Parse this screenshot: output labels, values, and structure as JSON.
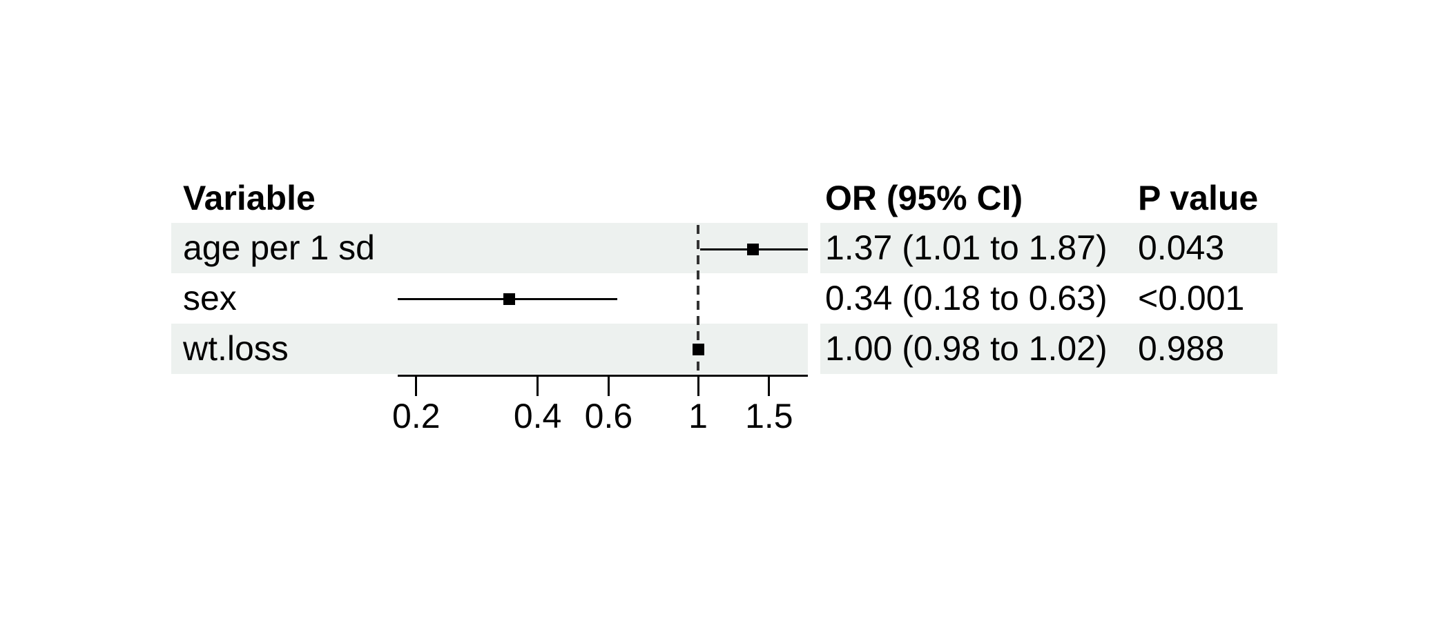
{
  "header": {
    "variable": "Variable",
    "or_ci": "OR (95% CI)",
    "p_value": "P value"
  },
  "rows": [
    {
      "variable": "age per 1 sd",
      "or_ci": "1.37 (1.01 to 1.87)",
      "p_value": "0.043"
    },
    {
      "variable": "sex",
      "or_ci": "0.34 (0.18 to 0.63)",
      "p_value": "<0.001"
    },
    {
      "variable": "wt.loss",
      "or_ci": "1.00 (0.98 to 1.02)",
      "p_value": "0.988"
    }
  ],
  "chart_data": {
    "type": "scatter",
    "subtype": "forest-plot",
    "title": "",
    "xlabel": "",
    "ylabel": "",
    "x_scale": "log",
    "x_ticks": [
      0.2,
      0.4,
      0.6,
      1,
      1.5
    ],
    "x_range": [
      0.18,
      1.87
    ],
    "reference_line": 1,
    "estimate_label": "OR",
    "categories": [
      "age per 1 sd",
      "sex",
      "wt.loss"
    ],
    "series": [
      {
        "name": "age per 1 sd",
        "estimate": 1.37,
        "ci_low": 1.01,
        "ci_high": 1.87,
        "p": "0.043"
      },
      {
        "name": "sex",
        "estimate": 0.34,
        "ci_low": 0.18,
        "ci_high": 0.63,
        "p": "<0.001"
      },
      {
        "name": "wt.loss",
        "estimate": 1.0,
        "ci_low": 0.98,
        "ci_high": 1.02,
        "p": "0.988"
      }
    ],
    "row_shading": [
      true,
      false,
      true
    ],
    "shade_color": "#edf1ef",
    "marker_color": "#000000",
    "grid": false,
    "legend": false
  }
}
